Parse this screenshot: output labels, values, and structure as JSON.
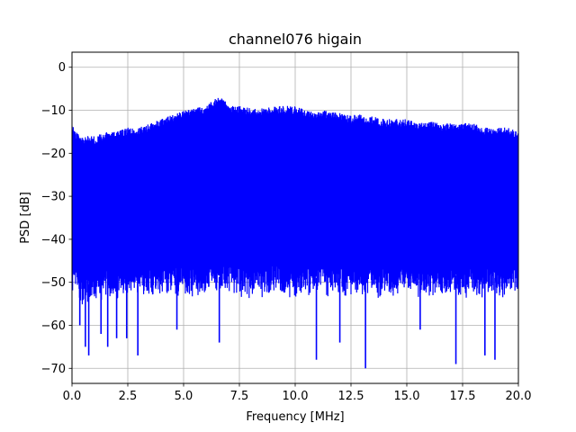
{
  "chart_data": {
    "type": "line",
    "title": "channel076 higain",
    "xlabel": "Frequency [MHz]",
    "ylabel": "PSD [dB]",
    "xlim": [
      0,
      20
    ],
    "ylim": [
      -73.5,
      3.5
    ],
    "xticks": [
      0.0,
      2.5,
      5.0,
      7.5,
      10.0,
      12.5,
      15.0,
      17.5,
      20.0
    ],
    "xtick_labels": [
      "0.0",
      "2.5",
      "5.0",
      "7.5",
      "10.0",
      "12.5",
      "15.0",
      "17.5",
      "20.0"
    ],
    "yticks": [
      0,
      -10,
      -20,
      -30,
      -40,
      -50,
      -60,
      -70
    ],
    "ytick_labels": [
      "0",
      "−10",
      "−20",
      "−30",
      "−40",
      "−50",
      "−60",
      "−70"
    ],
    "grid": true,
    "series": [
      {
        "color": "#0000ff",
        "upper_envelope": {
          "x": [
            0.0,
            0.2,
            0.5,
            1.0,
            1.5,
            2.0,
            2.5,
            3.0,
            3.5,
            4.0,
            4.5,
            5.0,
            5.5,
            6.0,
            6.5,
            6.8,
            7.0,
            7.5,
            8.0,
            8.5,
            9.0,
            9.5,
            10.0,
            10.5,
            11.0,
            11.5,
            12.0,
            12.5,
            13.0,
            13.5,
            14.0,
            14.5,
            15.0,
            15.5,
            16.0,
            16.5,
            17.0,
            17.5,
            18.0,
            18.5,
            19.0,
            19.5,
            20.0
          ],
          "y": [
            -13,
            -15,
            -16,
            -16,
            -15,
            -15,
            -14,
            -14,
            -13,
            -12,
            -11,
            -10,
            -9.5,
            -9,
            -7,
            -7,
            -9,
            -9,
            -9.5,
            -9.5,
            -9,
            -9,
            -9,
            -10,
            -10,
            -10,
            -10.5,
            -11,
            -11,
            -11.5,
            -12,
            -12,
            -12,
            -13,
            -12.5,
            -13,
            -13,
            -13,
            -13,
            -14,
            -14,
            -14,
            -15
          ]
        },
        "lower_envelope": {
          "x": [
            0.0,
            0.5,
            1.0,
            1.5,
            2.0,
            2.5,
            3.0,
            3.5,
            4.0,
            4.5,
            5.0,
            5.5,
            6.0,
            6.5,
            7.0,
            7.5,
            8.0,
            8.5,
            9.0,
            9.5,
            10.0,
            10.5,
            11.0,
            11.5,
            12.0,
            12.5,
            13.0,
            13.5,
            14.0,
            14.5,
            15.0,
            15.5,
            16.0,
            16.5,
            17.0,
            17.5,
            18.0,
            18.5,
            19.0,
            19.5,
            20.0
          ],
          "y": [
            -50,
            -53,
            -52,
            -51,
            -52,
            -51,
            -51,
            -51,
            -51,
            -50,
            -51,
            -51,
            -51,
            -51,
            -50,
            -51,
            -51,
            -51,
            -50,
            -51,
            -51,
            -51,
            -51,
            -51,
            -51,
            -51,
            -51,
            -51,
            -51,
            -51,
            -50,
            -51,
            -51,
            -51,
            -50,
            -51,
            -51,
            -51,
            -51,
            -51,
            -50
          ]
        },
        "deep_dips": {
          "x": [
            0.35,
            0.6,
            0.75,
            1.3,
            1.6,
            2.0,
            2.45,
            2.95,
            4.7,
            6.6,
            10.95,
            12.0,
            13.15,
            15.6,
            17.2,
            18.5,
            18.95
          ],
          "y": [
            -60,
            -65,
            -67,
            -62,
            -65,
            -63,
            -63,
            -67,
            -61,
            -64,
            -68,
            -64,
            -70,
            -61,
            -69,
            -67,
            -68
          ]
        }
      }
    ]
  }
}
